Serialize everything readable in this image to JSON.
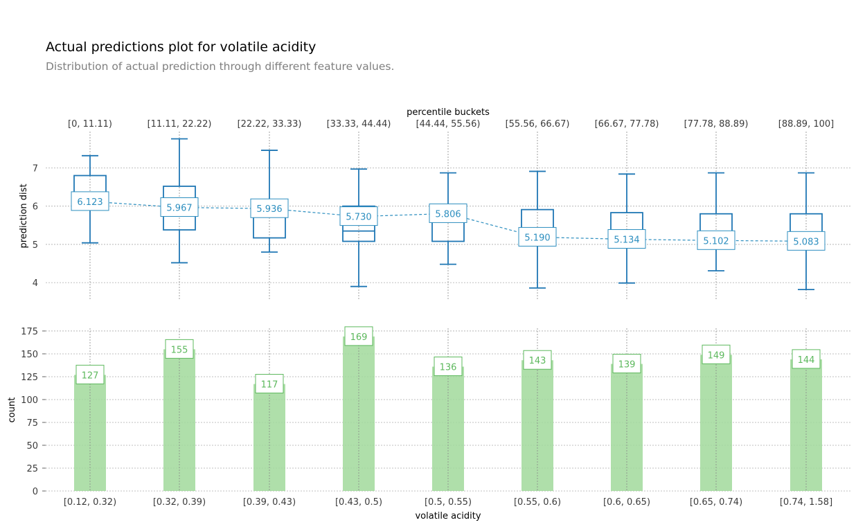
{
  "title": "Actual predictions plot for volatile acidity",
  "subtitle": "Distribution of actual prediction through different feature values.",
  "colors": {
    "box": "#1f77b4",
    "box_label": "#2c8ebf",
    "bar": "#a1d99b",
    "bar_label": "#5cb85c",
    "grid": "#aaaaaa",
    "text": "#3b3b3b"
  },
  "chart_data": [
    {
      "type": "box",
      "ylabel": "prediction dist",
      "top_axis_label": "percentile buckets",
      "top_ticks": [
        "[0, 11.11)",
        "[11.11, 22.22)",
        "[22.22, 33.33)",
        "[33.33, 44.44)",
        "[44.44, 55.56)",
        "[55.56, 66.67)",
        "[66.67, 77.78)",
        "[77.78, 88.89)",
        "[88.89, 100]"
      ],
      "y_ticks": [
        "4",
        "5",
        "6",
        "7"
      ],
      "ylim": [
        3.55,
        7.95
      ],
      "grid": true,
      "boxes": [
        {
          "whisker_low": 5.04,
          "q1": 5.98,
          "median": 6.0,
          "q3": 6.8,
          "whisker_high": 7.32
        },
        {
          "whisker_low": 4.52,
          "q1": 5.38,
          "median": 5.86,
          "q3": 6.52,
          "whisker_high": 7.76
        },
        {
          "whisker_low": 4.8,
          "q1": 5.17,
          "median": 5.96,
          "q3": 6.14,
          "whisker_high": 7.46
        },
        {
          "whisker_low": 3.9,
          "q1": 5.08,
          "median": 5.35,
          "q3": 6.0,
          "whisker_high": 6.97
        },
        {
          "whisker_low": 4.48,
          "q1": 5.08,
          "median": 5.7,
          "q3": 6.0,
          "whisker_high": 6.87
        },
        {
          "whisker_low": 3.86,
          "q1": 5.22,
          "median": 5.3,
          "q3": 5.91,
          "whisker_high": 6.91
        },
        {
          "whisker_low": 3.99,
          "q1": 5.06,
          "median": 5.12,
          "q3": 5.83,
          "whisker_high": 6.84
        },
        {
          "whisker_low": 4.31,
          "q1": 4.97,
          "median": 4.98,
          "q3": 5.8,
          "whisker_high": 6.87
        },
        {
          "whisker_low": 3.82,
          "q1": 4.98,
          "median": 4.99,
          "q3": 5.8,
          "whisker_high": 6.87
        }
      ],
      "means": [
        6.123,
        5.967,
        5.936,
        5.73,
        5.806,
        5.19,
        5.134,
        5.102,
        5.083
      ],
      "mean_labels": [
        "6.123",
        "5.967",
        "5.936",
        "5.730",
        "5.806",
        "5.190",
        "5.134",
        "5.102",
        "5.083"
      ]
    },
    {
      "type": "bar",
      "ylabel": "count",
      "xlabel": "volatile acidity",
      "categories": [
        "[0.12, 0.32)",
        "[0.32, 0.39)",
        "[0.39, 0.43)",
        "[0.43, 0.5)",
        "[0.5, 0.55)",
        "[0.55, 0.6)",
        "[0.6, 0.65)",
        "[0.65, 0.74)",
        "[0.74, 1.58]"
      ],
      "values": [
        127,
        155,
        117,
        169,
        136,
        143,
        139,
        149,
        144
      ],
      "value_labels": [
        "127",
        "155",
        "117",
        "169",
        "136",
        "143",
        "139",
        "149",
        "144"
      ],
      "y_ticks": [
        "0",
        "25",
        "50",
        "75",
        "100",
        "125",
        "150",
        "175"
      ],
      "ylim": [
        0,
        178
      ],
      "grid": true
    }
  ]
}
